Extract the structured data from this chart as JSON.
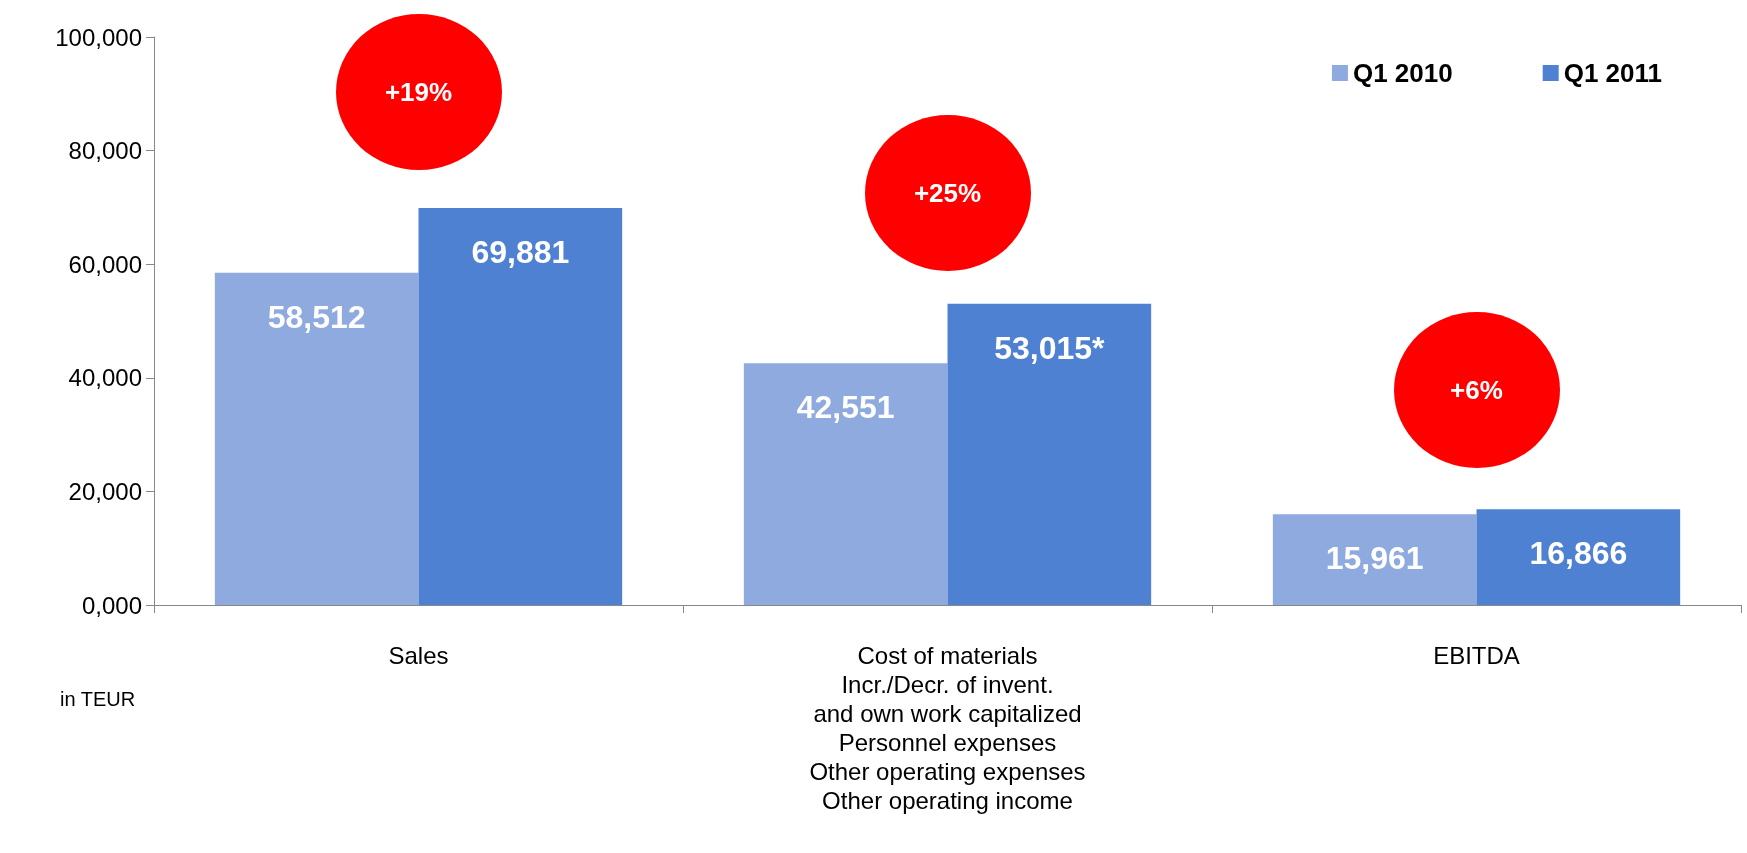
{
  "chart_data": {
    "type": "bar",
    "categories": [
      "Sales",
      "Cost of materials\nIncr./Decr. of invent.\nand own work capitalized\nPersonnel expenses\nOther operating expenses\nOther operating income",
      "EBITDA"
    ],
    "series": [
      {
        "name": "Q1 2010",
        "color": "#8eaadf",
        "values": [
          58512,
          42551,
          15961
        ],
        "value_labels": [
          "58,512",
          "42,551",
          "15,961"
        ]
      },
      {
        "name": "Q1 2011",
        "color": "#4f81d3",
        "values": [
          69881,
          53015,
          16866
        ],
        "value_labels": [
          "69,881",
          "53,015*",
          "16,866"
        ]
      }
    ],
    "ylim": [
      0,
      100000
    ],
    "yticks": [
      {
        "value": 0,
        "label": "0,000"
      },
      {
        "value": 20000,
        "label": "20,000"
      },
      {
        "value": 40000,
        "label": "40,000"
      },
      {
        "value": 60000,
        "label": "60,000"
      },
      {
        "value": 80000,
        "label": "80,000"
      },
      {
        "value": 100000,
        "label": "100,000"
      }
    ],
    "grid": false,
    "legend": "top right",
    "annotations": [
      "+19%",
      "+25%",
      "+6%",
      "in TEUR"
    ]
  }
}
